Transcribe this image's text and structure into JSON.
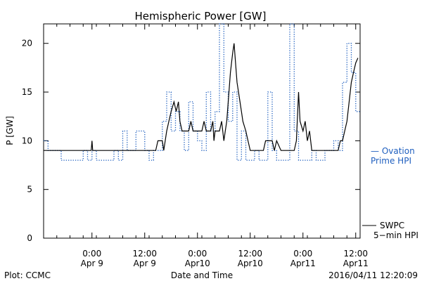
{
  "chart_data": {
    "type": "line",
    "title": "Hemispheric Power [GW]",
    "xlabel": "Date and Time",
    "ylabel": "P [GW]",
    "xlim": [
      "2016-04-08T13:00",
      "2016-04-11T13:00"
    ],
    "ylim": [
      0,
      22
    ],
    "grid": false,
    "y_ticks": [
      0,
      5,
      10,
      15,
      20
    ],
    "x_ticks": [
      {
        "t": "2016-04-09T00:00",
        "line1": "0:00",
        "line2": "Apr 9"
      },
      {
        "t": "2016-04-09T12:00",
        "line1": "12:00",
        "line2": "Apr 9"
      },
      {
        "t": "2016-04-10T00:00",
        "line1": "0:00",
        "line2": "Apr10"
      },
      {
        "t": "2016-04-10T12:00",
        "line1": "12:00",
        "line2": "Apr10"
      },
      {
        "t": "2016-04-11T00:00",
        "line1": "0:00",
        "line2": "Apr11"
      },
      {
        "t": "2016-04-11T12:00",
        "line1": "12:00",
        "line2": "Apr11"
      }
    ],
    "series": [
      {
        "name_line1": "— Ovation",
        "name_line2": "Prime HPI",
        "color": "#1f5fbf",
        "style": "dotted-step",
        "points": [
          [
            "2016-04-08T13:00",
            10
          ],
          [
            "2016-04-08T14:00",
            9
          ],
          [
            "2016-04-08T17:00",
            8
          ],
          [
            "2016-04-08T22:00",
            9
          ],
          [
            "2016-04-08T23:00",
            8
          ],
          [
            "2016-04-09T00:00",
            9
          ],
          [
            "2016-04-09T01:00",
            8
          ],
          [
            "2016-04-09T05:00",
            9
          ],
          [
            "2016-04-09T06:00",
            8
          ],
          [
            "2016-04-09T07:00",
            11
          ],
          [
            "2016-04-09T08:00",
            9
          ],
          [
            "2016-04-09T10:00",
            11
          ],
          [
            "2016-04-09T12:00",
            9
          ],
          [
            "2016-04-09T13:00",
            8
          ],
          [
            "2016-04-09T14:00",
            9
          ],
          [
            "2016-04-09T16:00",
            12
          ],
          [
            "2016-04-09T17:00",
            15
          ],
          [
            "2016-04-09T18:00",
            11
          ],
          [
            "2016-04-09T19:00",
            13
          ],
          [
            "2016-04-09T20:00",
            11
          ],
          [
            "2016-04-09T21:00",
            9
          ],
          [
            "2016-04-09T22:00",
            14
          ],
          [
            "2016-04-09T23:00",
            11
          ],
          [
            "2016-04-10T00:00",
            10
          ],
          [
            "2016-04-10T01:00",
            9
          ],
          [
            "2016-04-10T02:00",
            15
          ],
          [
            "2016-04-10T03:00",
            11
          ],
          [
            "2016-04-10T04:00",
            13
          ],
          [
            "2016-04-10T05:00",
            22
          ],
          [
            "2016-04-10T06:00",
            15
          ],
          [
            "2016-04-10T07:00",
            12
          ],
          [
            "2016-04-10T08:00",
            15
          ],
          [
            "2016-04-10T09:00",
            8
          ],
          [
            "2016-04-10T10:00",
            11
          ],
          [
            "2016-04-10T11:00",
            8
          ],
          [
            "2016-04-10T13:00",
            9
          ],
          [
            "2016-04-10T14:00",
            8
          ],
          [
            "2016-04-10T16:00",
            15
          ],
          [
            "2016-04-10T17:00",
            9
          ],
          [
            "2016-04-10T18:00",
            8
          ],
          [
            "2016-04-10T21:00",
            22
          ],
          [
            "2016-04-10T22:00",
            11
          ],
          [
            "2016-04-10T23:00",
            8
          ],
          [
            "2016-04-11T02:00",
            9
          ],
          [
            "2016-04-11T03:00",
            8
          ],
          [
            "2016-04-11T05:00",
            9
          ],
          [
            "2016-04-11T07:00",
            10
          ],
          [
            "2016-04-11T08:00",
            9
          ],
          [
            "2016-04-11T09:00",
            16
          ],
          [
            "2016-04-11T10:00",
            20
          ],
          [
            "2016-04-11T11:00",
            17
          ],
          [
            "2016-04-11T12:00",
            13
          ],
          [
            "2016-04-11T13:00",
            13
          ]
        ]
      },
      {
        "name_line1": "SWPC",
        "name_line2": "5−min HPI",
        "color": "#000000",
        "style": "solid",
        "points": [
          [
            "2016-04-08T13:00",
            9
          ],
          [
            "2016-04-08T23:50",
            9
          ],
          [
            "2016-04-09T00:00",
            10
          ],
          [
            "2016-04-09T00:10",
            9
          ],
          [
            "2016-04-09T14:30",
            9
          ],
          [
            "2016-04-09T15:00",
            10
          ],
          [
            "2016-04-09T16:00",
            10
          ],
          [
            "2016-04-09T16:20",
            9
          ],
          [
            "2016-04-09T16:40",
            10
          ],
          [
            "2016-04-09T17:00",
            11
          ],
          [
            "2016-04-09T17:30",
            12
          ],
          [
            "2016-04-09T18:00",
            13
          ],
          [
            "2016-04-09T18:40",
            14
          ],
          [
            "2016-04-09T19:10",
            13
          ],
          [
            "2016-04-09T19:40",
            14
          ],
          [
            "2016-04-09T20:00",
            12
          ],
          [
            "2016-04-09T20:30",
            11
          ],
          [
            "2016-04-09T22:00",
            11
          ],
          [
            "2016-04-09T22:30",
            12
          ],
          [
            "2016-04-09T23:00",
            11
          ],
          [
            "2016-04-10T00:00",
            11
          ],
          [
            "2016-04-10T01:00",
            11
          ],
          [
            "2016-04-10T01:30",
            12
          ],
          [
            "2016-04-10T02:00",
            11
          ],
          [
            "2016-04-10T03:00",
            11
          ],
          [
            "2016-04-10T03:30",
            12
          ],
          [
            "2016-04-10T03:45",
            10
          ],
          [
            "2016-04-10T04:00",
            11
          ],
          [
            "2016-04-10T05:00",
            11
          ],
          [
            "2016-04-10T05:30",
            12
          ],
          [
            "2016-04-10T06:00",
            10
          ],
          [
            "2016-04-10T06:20",
            11
          ],
          [
            "2016-04-10T06:40",
            12
          ],
          [
            "2016-04-10T07:00",
            14
          ],
          [
            "2016-04-10T07:30",
            17
          ],
          [
            "2016-04-10T08:00",
            19
          ],
          [
            "2016-04-10T08:20",
            20
          ],
          [
            "2016-04-10T08:40",
            18
          ],
          [
            "2016-04-10T09:00",
            16
          ],
          [
            "2016-04-10T09:20",
            15
          ],
          [
            "2016-04-10T09:40",
            14
          ],
          [
            "2016-04-10T10:00",
            13
          ],
          [
            "2016-04-10T10:20",
            12
          ],
          [
            "2016-04-10T11:00",
            11
          ],
          [
            "2016-04-10T11:30",
            10
          ],
          [
            "2016-04-10T12:00",
            9
          ],
          [
            "2016-04-10T15:00",
            9
          ],
          [
            "2016-04-10T15:30",
            10
          ],
          [
            "2016-04-10T17:00",
            10
          ],
          [
            "2016-04-10T17:30",
            9
          ],
          [
            "2016-04-10T18:00",
            10
          ],
          [
            "2016-04-10T19:00",
            9
          ],
          [
            "2016-04-10T22:00",
            9
          ],
          [
            "2016-04-10T22:30",
            10
          ],
          [
            "2016-04-10T23:00",
            15
          ],
          [
            "2016-04-10T23:20",
            12
          ],
          [
            "2016-04-11T00:00",
            11
          ],
          [
            "2016-04-11T00:30",
            12
          ],
          [
            "2016-04-11T01:00",
            10
          ],
          [
            "2016-04-11T01:30",
            11
          ],
          [
            "2016-04-11T02:00",
            9
          ],
          [
            "2016-04-11T04:00",
            9
          ],
          [
            "2016-04-11T08:00",
            9
          ],
          [
            "2016-04-11T08:30",
            10
          ],
          [
            "2016-04-11T09:00",
            10
          ],
          [
            "2016-04-11T09:30",
            11
          ],
          [
            "2016-04-11T10:00",
            12
          ],
          [
            "2016-04-11T10:30",
            14
          ],
          [
            "2016-04-11T11:00",
            16
          ],
          [
            "2016-04-11T11:30",
            17
          ],
          [
            "2016-04-11T12:00",
            18
          ],
          [
            "2016-04-11T12:30",
            18.5
          ]
        ]
      }
    ]
  },
  "footer": {
    "plot_credit": "Plot: CCMC",
    "timestamp": "2016/04/11 12:20:09"
  }
}
